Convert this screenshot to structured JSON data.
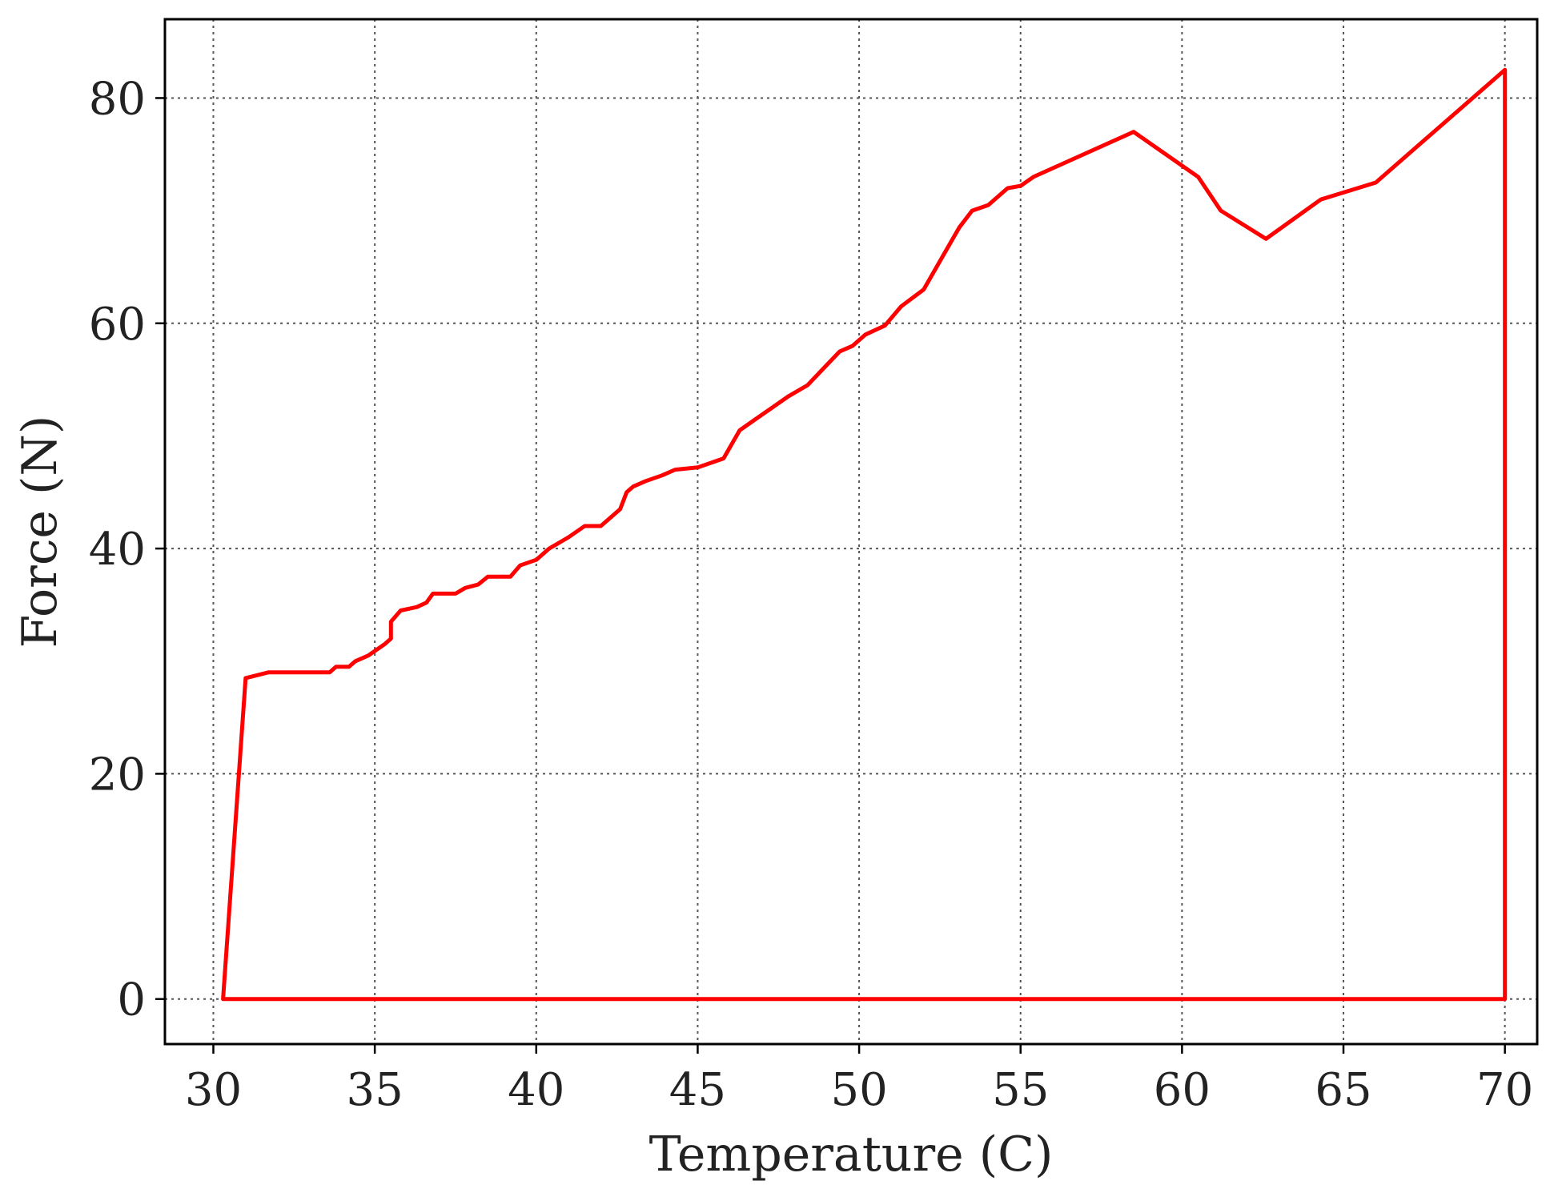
{
  "chart_data": {
    "type": "line",
    "title": "",
    "xlabel": "Temperature (C)",
    "ylabel": "Force (N)",
    "xlim": [
      28.5,
      71.0
    ],
    "ylim": [
      -4,
      87
    ],
    "xticks": [
      30,
      35,
      40,
      45,
      50,
      55,
      60,
      65,
      70
    ],
    "yticks": [
      0,
      20,
      40,
      60,
      80
    ],
    "grid": true,
    "legend": "none",
    "series": [
      {
        "color": "#ff0000",
        "points": [
          [
            30.3,
            0
          ],
          [
            31.0,
            28.5
          ],
          [
            31.7,
            29.0
          ],
          [
            33.6,
            29.0
          ],
          [
            33.8,
            29.5
          ],
          [
            34.2,
            29.5
          ],
          [
            34.4,
            30.0
          ],
          [
            34.8,
            30.5
          ],
          [
            35.3,
            31.5
          ],
          [
            35.5,
            32.0
          ],
          [
            35.5,
            33.5
          ],
          [
            35.8,
            34.5
          ],
          [
            36.3,
            34.8
          ],
          [
            36.6,
            35.2
          ],
          [
            36.8,
            36.0
          ],
          [
            37.5,
            36.0
          ],
          [
            37.8,
            36.5
          ],
          [
            38.2,
            36.8
          ],
          [
            38.5,
            37.5
          ],
          [
            39.2,
            37.5
          ],
          [
            39.5,
            38.5
          ],
          [
            40.0,
            39.0
          ],
          [
            40.4,
            40.0
          ],
          [
            41.0,
            41.0
          ],
          [
            41.5,
            42.0
          ],
          [
            42.0,
            42.0
          ],
          [
            42.6,
            43.5
          ],
          [
            42.8,
            45.0
          ],
          [
            43.0,
            45.5
          ],
          [
            43.4,
            46.0
          ],
          [
            43.9,
            46.5
          ],
          [
            44.3,
            47.0
          ],
          [
            45.0,
            47.2
          ],
          [
            45.3,
            47.5
          ],
          [
            45.8,
            48.0
          ],
          [
            46.0,
            49.0
          ],
          [
            46.3,
            50.5
          ],
          [
            46.8,
            51.5
          ],
          [
            47.3,
            52.5
          ],
          [
            47.8,
            53.5
          ],
          [
            48.4,
            54.5
          ],
          [
            48.9,
            56.0
          ],
          [
            49.4,
            57.5
          ],
          [
            49.8,
            58.0
          ],
          [
            50.2,
            59.0
          ],
          [
            50.8,
            59.8
          ],
          [
            51.3,
            61.5
          ],
          [
            52.0,
            63.0
          ],
          [
            52.6,
            66.0
          ],
          [
            53.1,
            68.5
          ],
          [
            53.5,
            70.0
          ],
          [
            54.0,
            70.5
          ],
          [
            54.6,
            72.0
          ],
          [
            55.0,
            72.2
          ],
          [
            55.4,
            73.0
          ],
          [
            58.5,
            77.0
          ],
          [
            59.5,
            75.0
          ],
          [
            60.5,
            73.0
          ],
          [
            61.2,
            70.0
          ],
          [
            62.6,
            67.5
          ],
          [
            64.3,
            71.0
          ],
          [
            66.0,
            72.5
          ],
          [
            67.8,
            77.0
          ],
          [
            70.0,
            82.5
          ],
          [
            70.0,
            0
          ],
          [
            69.8,
            0
          ],
          [
            30.3,
            0
          ]
        ]
      }
    ]
  }
}
